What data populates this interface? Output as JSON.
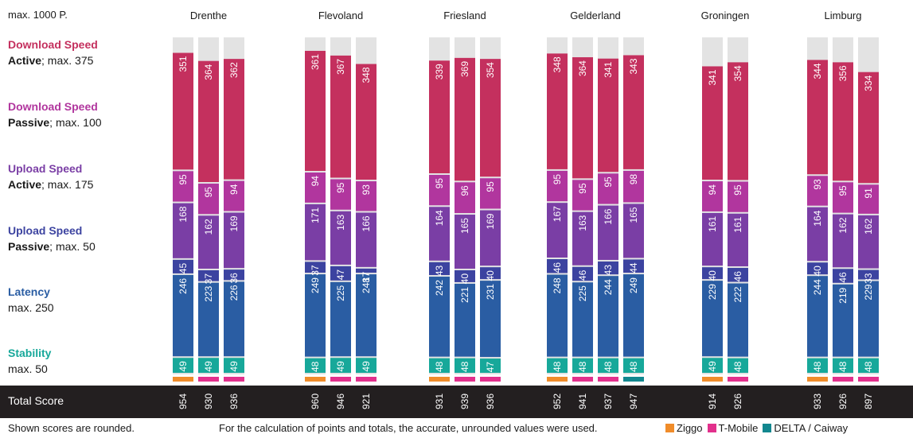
{
  "header": {
    "scale_label": "max. 1000 P."
  },
  "categories": [
    {
      "title": "Download Speed",
      "mode": "Active",
      "max": "; max. 375",
      "color": "#c4305e"
    },
    {
      "title": "Download Speed",
      "mode": "Passive",
      "max": "; max. 100",
      "color": "#b1369e"
    },
    {
      "title": "Upload Speed",
      "mode": "Active",
      "max": "; max. 175",
      "color": "#7a3ea5"
    },
    {
      "title": "Upload Speed",
      "mode": "Passive",
      "max": "; max. 50",
      "color": "#3c43a0"
    },
    {
      "title": "Latency",
      "mode": "",
      "max": "max. 250",
      "color": "#2a5da3"
    },
    {
      "title": "Stability",
      "mode": "",
      "max": "max. 50",
      "color": "#17a89a"
    }
  ],
  "total_label": "Total Score",
  "footnote": "Shown scores are rounded.",
  "calc_note": "For the calculation of points and totals, the accurate, unrounded values were used.",
  "legend": [
    {
      "name": "Ziggo",
      "color": "#f08c2a"
    },
    {
      "name": "T-Mobile",
      "color": "#e2308c"
    },
    {
      "name": "DELTA / Caiway",
      "color": "#12878f"
    }
  ],
  "chart_data": {
    "type": "bar",
    "stacked": true,
    "max_total": 1000,
    "segment_order": [
      "download_active",
      "download_passive",
      "upload_active",
      "upload_passive",
      "latency",
      "stability"
    ],
    "segment_max": [
      375,
      100,
      175,
      50,
      250,
      50
    ],
    "segment_colors": [
      "#c4305e",
      "#b1369e",
      "#7a3ea5",
      "#3c43a0",
      "#2a5da3",
      "#17a89a"
    ],
    "regions": [
      {
        "name": "Drenthe",
        "bars": [
          {
            "operator": "Ziggo",
            "segments": [
              351,
              95,
              168,
              45,
              246,
              49
            ],
            "total": 954
          },
          {
            "operator": "T-Mobile",
            "segments": [
              364,
              95,
              162,
              37,
              223,
              49
            ],
            "total": 930
          },
          {
            "operator": "T-Mobile",
            "segments": [
              362,
              94,
              169,
              36,
              226,
              49
            ],
            "total": 936
          }
        ]
      },
      {
        "name": "Flevoland",
        "bars": [
          {
            "operator": "Ziggo",
            "segments": [
              361,
              94,
              171,
              37,
              249,
              48
            ],
            "total": 960
          },
          {
            "operator": "T-Mobile",
            "segments": [
              367,
              95,
              163,
              47,
              225,
              49
            ],
            "total": 946
          },
          {
            "operator": "T-Mobile",
            "segments": [
              348,
              93,
              166,
              17,
              248,
              49
            ],
            "total": 921
          }
        ]
      },
      {
        "name": "Friesland",
        "bars": [
          {
            "operator": "Ziggo",
            "segments": [
              339,
              95,
              164,
              43,
              242,
              48
            ],
            "total": 931
          },
          {
            "operator": "T-Mobile",
            "segments": [
              369,
              96,
              165,
              40,
              221,
              48
            ],
            "total": 939
          },
          {
            "operator": "T-Mobile",
            "segments": [
              354,
              95,
              169,
              40,
              231,
              47
            ],
            "total": 936
          }
        ]
      },
      {
        "name": "Gelderland",
        "bars": [
          {
            "operator": "Ziggo",
            "segments": [
              348,
              95,
              167,
              46,
              248,
              48
            ],
            "total": 952
          },
          {
            "operator": "T-Mobile",
            "segments": [
              364,
              95,
              163,
              46,
              225,
              48
            ],
            "total": 941
          },
          {
            "operator": "T-Mobile",
            "segments": [
              341,
              95,
              166,
              43,
              244,
              48
            ],
            "total": 937
          },
          {
            "operator": "DELTA / Caiway",
            "segments": [
              343,
              98,
              165,
              44,
              249,
              48
            ],
            "total": 947
          }
        ]
      },
      {
        "name": "Groningen",
        "bars": [
          {
            "operator": "Ziggo",
            "segments": [
              341,
              94,
              161,
              40,
              229,
              49
            ],
            "total": 914
          },
          {
            "operator": "T-Mobile",
            "segments": [
              354,
              95,
              161,
              46,
              222,
              48
            ],
            "total": 926
          }
        ]
      },
      {
        "name": "Limburg",
        "bars": [
          {
            "operator": "Ziggo",
            "segments": [
              344,
              93,
              164,
              40,
              244,
              48
            ],
            "total": 933
          },
          {
            "operator": "T-Mobile",
            "segments": [
              356,
              95,
              162,
              46,
              219,
              48
            ],
            "total": 926
          },
          {
            "operator": "T-Mobile",
            "segments": [
              334,
              91,
              162,
              33,
              229,
              48
            ],
            "total": 897
          }
        ]
      }
    ]
  }
}
